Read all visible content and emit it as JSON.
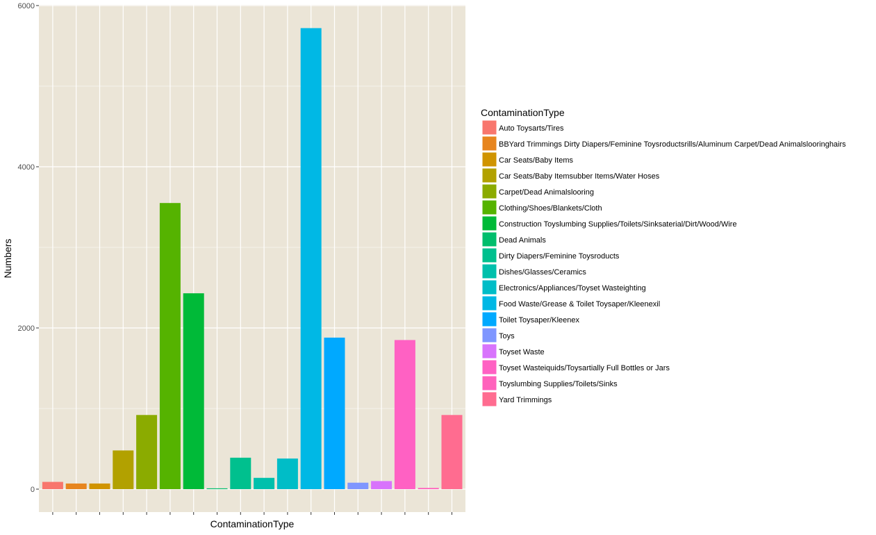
{
  "chart_data": {
    "type": "bar",
    "xlabel": "ContaminationType",
    "ylabel": "Numbers",
    "ylim": [
      -300,
      6000
    ],
    "yticks": [
      0,
      2000,
      4000,
      6000
    ],
    "grid": true,
    "legend_position": "right",
    "legend_title": "ContaminationType",
    "x_tick_labels_shown": false,
    "categories": [
      "Auto Toysarts/Tires",
      "BBYard Trimmings Dirty Diapers/Feminine Toysroductsrills/Aluminum Carpet/Dead Animalslooringhairs",
      "Car Seats/Baby Items",
      "Car Seats/Baby Itemsubber Items/Water Hoses",
      "Carpet/Dead Animalslooring",
      "Clothing/Shoes/Blankets/Cloth",
      "Construction Toyslumbing Supplies/Toilets/Sinksaterial/Dirt/Wood/Wire",
      "Dead Animals",
      "Dirty Diapers/Feminine Toysroducts",
      "Dishes/Glasses/Ceramics",
      "Electronics/Appliances/Toyset Wasteighting",
      "Food Waste/Grease & Toilet Toysaper/Kleenexil",
      "Toilet Toysaper/Kleenex",
      "Toys",
      "Toyset Waste",
      "Toyset Wasteiquids/Toysartially Full Bottles or Jars",
      "Toyslumbing Supplies/Toilets/Sinks",
      "Yard Trimmings"
    ],
    "values": [
      90,
      70,
      70,
      480,
      920,
      3550,
      2430,
      10,
      390,
      140,
      380,
      5720,
      1880,
      80,
      100,
      1850,
      15,
      920
    ],
    "colors": [
      "#F8766D",
      "#E7851E",
      "#D09400",
      "#B2A100",
      "#8BAB00",
      "#55B300",
      "#00BA38",
      "#00BE6C",
      "#00C08E",
      "#00C0AC",
      "#00BDC7",
      "#00B8E5",
      "#00A9FF",
      "#7F96FF",
      "#D873FC",
      "#FF61C3",
      "#FF62BC",
      "#FF6C90"
    ],
    "panel_background": "#EBE5D7",
    "grid_color": "#FFFFFF"
  }
}
